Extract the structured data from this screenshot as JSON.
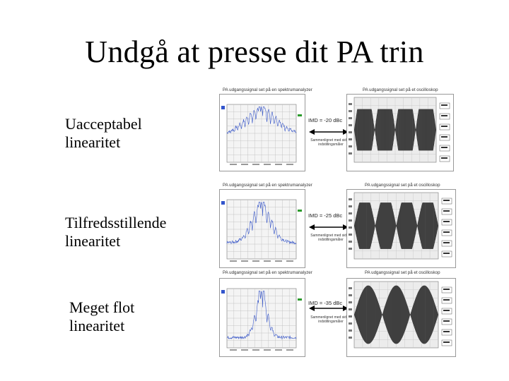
{
  "title": "Undgå at presse dit PA trin",
  "rows": [
    {
      "label_line1": "Uacceptabel",
      "label_line2": "linearitet",
      "spectrum_caption": "PA udgangssignal set på en spektrumanalyzer",
      "scope_caption": "PA udgangssignal set på et oscilloskop",
      "imd": "IMD = -20 dBc",
      "note": "Sammenlignet med sidste indstillingsmåler"
    },
    {
      "label_line1": "Tilfredsstillende",
      "label_line2": "linearitet",
      "spectrum_caption": "PA udgangssignal set på en spektrumanalyzer",
      "scope_caption": "PA udgangssignal set på et oscilloskop",
      "imd": "IMD = -25 dBc",
      "note": "Sammenlignet med sidste indstillingsmåler"
    },
    {
      "label_line1": "Meget flot",
      "label_line2": "linearitet",
      "spectrum_caption": "PA udgangssignal set på en spektrumanalyzer",
      "scope_caption": "PA udgangssignal set på et oscilloskop",
      "imd": "IMD = -35 dBc",
      "note": "Sammenlignet med sidste indstillingsmåler"
    }
  ]
}
